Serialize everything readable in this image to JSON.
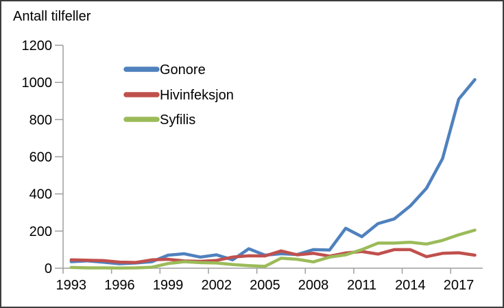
{
  "title": "Antall tilfeller",
  "colors": {
    "gonore": "#4F81BD",
    "hivinfeksjon": "#C0504D",
    "syfilis": "#9BBB59",
    "axis": "#9E9E9E",
    "text": "#000000",
    "frame_border": "#3c3c3c",
    "background": "#ffffff"
  },
  "chart_data": {
    "type": "line",
    "title": "Antall tilfeller",
    "xlabel": "",
    "ylabel": "Antall tilfeller",
    "ylim": [
      0,
      1200
    ],
    "yticks": [
      0,
      200,
      400,
      600,
      800,
      1000,
      1200
    ],
    "xtick_labels": [
      1993,
      1996,
      1999,
      2002,
      2005,
      2008,
      2011,
      2014,
      2017
    ],
    "grid": false,
    "legend_position": "inside-top-left",
    "x": [
      1993,
      1994,
      1995,
      1996,
      1997,
      1998,
      1999,
      2000,
      2001,
      2002,
      2003,
      2004,
      2005,
      2006,
      2007,
      2008,
      2009,
      2010,
      2011,
      2012,
      2013,
      2014,
      2015,
      2016,
      2017,
      2018
    ],
    "series": [
      {
        "name": "Gonore",
        "color": "#4F81BD",
        "values": [
          35,
          40,
          32,
          24,
          28,
          35,
          70,
          78,
          60,
          72,
          45,
          105,
          70,
          78,
          74,
          100,
          98,
          215,
          170,
          240,
          265,
          335,
          430,
          590,
          910,
          1015
        ]
      },
      {
        "name": "Hivinfeksjon",
        "color": "#C0504D",
        "values": [
          45,
          43,
          41,
          33,
          31,
          45,
          48,
          39,
          37,
          42,
          60,
          67,
          66,
          93,
          72,
          80,
          65,
          82,
          90,
          76,
          100,
          100,
          62,
          80,
          83,
          70
        ]
      },
      {
        "name": "Syfilis",
        "color": "#9BBB59",
        "values": [
          4,
          2,
          2,
          1,
          2,
          5,
          25,
          35,
          30,
          28,
          20,
          14,
          10,
          54,
          48,
          34,
          60,
          72,
          100,
          135,
          135,
          140,
          130,
          150,
          180,
          205
        ]
      }
    ]
  }
}
